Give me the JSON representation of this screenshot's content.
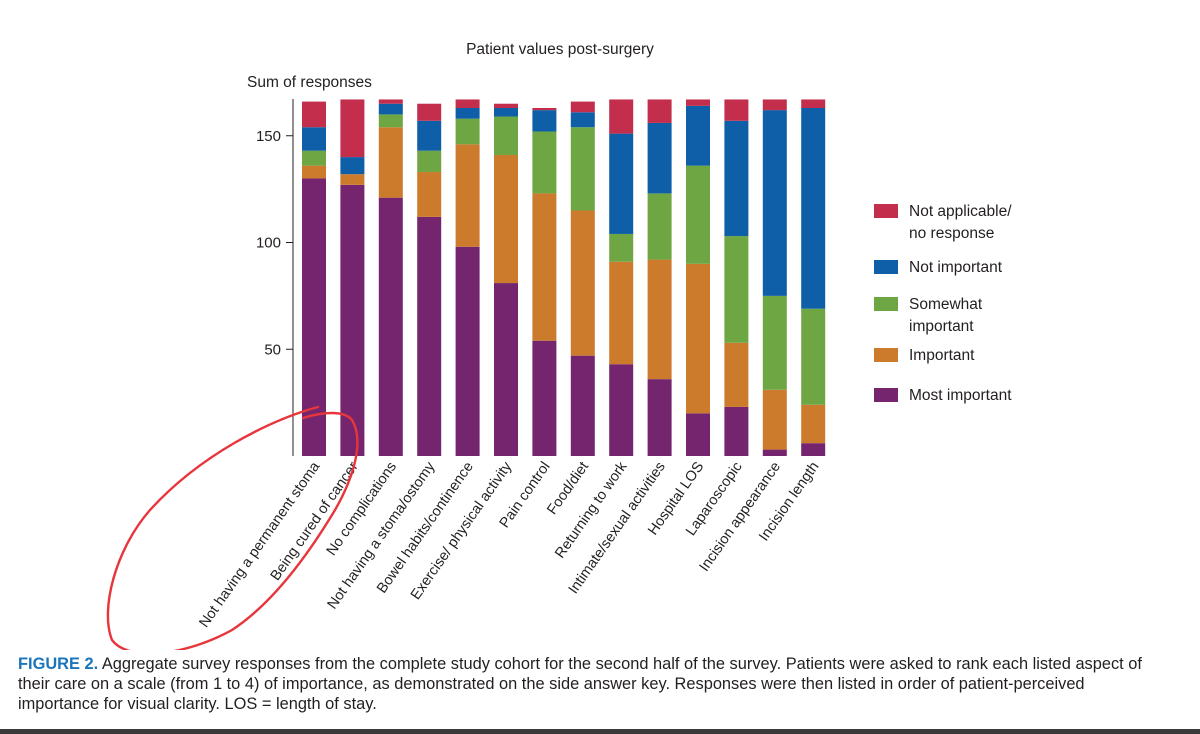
{
  "chart_data": {
    "type": "bar",
    "stacked": true,
    "title": "Patient values post-surgery",
    "xlabel": "",
    "ylabel": "Sum of responses",
    "ylim": [
      0,
      168
    ],
    "yticks": [
      50,
      100,
      150
    ],
    "grid": false,
    "legend_position": "right",
    "categories": [
      "Not having a permanent stoma",
      "Being cured of cancer",
      "No complications",
      "Not having a stoma/ostomy",
      "Bowel habits/continence",
      "Exercise/ physical activity",
      "Pain control",
      "Food/diet",
      "Returning to work",
      "Intimate/sexual activities",
      "Hospital LOS",
      "Laparoscopic",
      "Incision appearance",
      "Incision length"
    ],
    "series": [
      {
        "name": "Most important",
        "color": "#74256e",
        "values": [
          130,
          127,
          121,
          112,
          98,
          81,
          54,
          47,
          43,
          36,
          20,
          23,
          3,
          6
        ]
      },
      {
        "name": "Important",
        "color": "#cc7a2c",
        "values": [
          6,
          5,
          33,
          21,
          48,
          60,
          69,
          68,
          48,
          56,
          70,
          30,
          28,
          18
        ]
      },
      {
        "name": "Somewhat important",
        "color": "#6ea643",
        "values": [
          7,
          0,
          6,
          10,
          12,
          18,
          29,
          39,
          13,
          31,
          46,
          50,
          44,
          45
        ]
      },
      {
        "name": "Not important",
        "color": "#0e5ea8",
        "values": [
          11,
          8,
          5,
          14,
          5,
          4,
          10,
          7,
          47,
          33,
          28,
          54,
          87,
          94
        ]
      },
      {
        "name": "Not applicable/ no response",
        "color": "#c42e4d",
        "values": [
          12,
          27,
          2,
          8,
          4,
          2,
          1,
          5,
          16,
          11,
          3,
          10,
          5,
          4
        ]
      }
    ]
  },
  "legend": [
    {
      "lines": [
        "Not applicable/",
        "no response"
      ],
      "color": "#c42e4d"
    },
    {
      "lines": [
        "Not important"
      ],
      "color": "#0e5ea8"
    },
    {
      "lines": [
        "Somewhat",
        "important"
      ],
      "color": "#6ea643"
    },
    {
      "lines": [
        "Important"
      ],
      "color": "#cc7a2c"
    },
    {
      "lines": [
        "Most important"
      ],
      "color": "#74256e"
    }
  ],
  "caption": {
    "label": "FIGURE 2.",
    "text": "Aggregate survey responses from the complete study cohort for the second half of the survey. Patients were asked to rank each listed aspect of their care on a scale (from 1 to 4) of importance, as demonstrated on the side answer key. Responses were then listed in order of patient-perceived importance for visual clarity. LOS = length of stay."
  },
  "annotation": {
    "color": "#e8353c",
    "shape": "hand-drawn red outline around the first two bars"
  }
}
